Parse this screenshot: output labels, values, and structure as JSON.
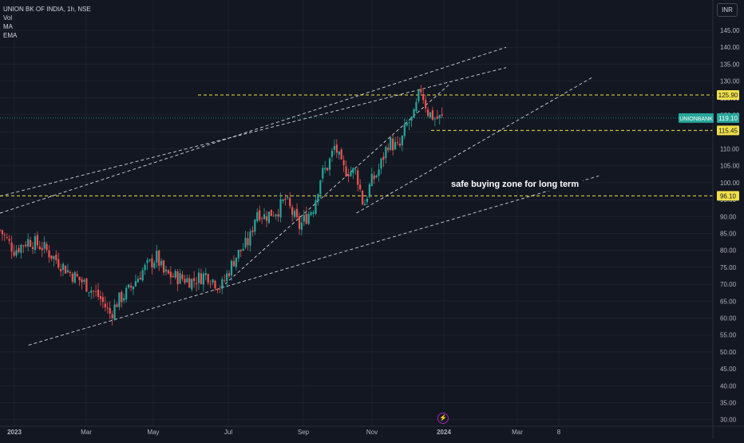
{
  "legend": {
    "symbol": "UNION BK OF INDIA, 1h, NSE",
    "indicators": [
      "Vol",
      "MA",
      "EMA"
    ]
  },
  "currency": "INR",
  "annotation": "safe buying zone for long term",
  "price_label": {
    "ticker": "UNIONBANK",
    "price": "119.10",
    "color": "#26a69a"
  },
  "levels": [
    {
      "label": "125.90",
      "value": 125.9,
      "color": "#f0e04a"
    },
    {
      "label": "115.45",
      "value": 115.45,
      "color": "#f0e04a"
    },
    {
      "label": "96.10",
      "value": 96.1,
      "color": "#f0e04a"
    }
  ],
  "colors": {
    "up": "#26a69a",
    "down": "#ef5350",
    "background": "#131722",
    "level": "#f0e04a"
  },
  "chart_data": {
    "type": "candlestick",
    "x_ticks": [
      "2023",
      "Mar",
      "May",
      "Jul",
      "Sep",
      "Nov",
      "2024",
      "Mar",
      "8"
    ],
    "y_ticks": [
      "145.00",
      "140.00",
      "135.00",
      "130.00",
      "125.00",
      "120.00",
      "115.00",
      "110.00",
      "105.00",
      "100.00",
      "95.00",
      "90.00",
      "85.00",
      "80.00",
      "75.00",
      "70.00",
      "65.00",
      "60.00",
      "55.00",
      "50.00",
      "45.00",
      "40.00",
      "35.00",
      "30.00"
    ],
    "ylim": [
      28,
      150
    ],
    "price_path": [
      [
        0,
        86
      ],
      [
        0.02,
        80
      ],
      [
        0.04,
        83
      ],
      [
        0.06,
        81
      ],
      [
        0.08,
        77
      ],
      [
        0.1,
        73
      ],
      [
        0.12,
        70
      ],
      [
        0.14,
        66
      ],
      [
        0.155,
        61
      ],
      [
        0.165,
        65
      ],
      [
        0.18,
        68
      ],
      [
        0.2,
        74
      ],
      [
        0.22,
        78
      ],
      [
        0.23,
        73
      ],
      [
        0.25,
        72
      ],
      [
        0.27,
        71
      ],
      [
        0.29,
        73
      ],
      [
        0.31,
        69
      ],
      [
        0.33,
        78
      ],
      [
        0.35,
        83
      ],
      [
        0.36,
        92
      ],
      [
        0.37,
        90
      ],
      [
        0.39,
        92
      ],
      [
        0.4,
        95
      ],
      [
        0.41,
        91
      ],
      [
        0.42,
        87
      ],
      [
        0.44,
        93
      ],
      [
        0.45,
        102
      ],
      [
        0.46,
        105
      ],
      [
        0.47,
        111
      ],
      [
        0.48,
        104
      ],
      [
        0.5,
        103
      ],
      [
        0.51,
        93
      ],
      [
        0.52,
        100
      ],
      [
        0.53,
        103
      ],
      [
        0.545,
        112
      ],
      [
        0.56,
        110
      ],
      [
        0.57,
        117
      ],
      [
        0.58,
        119
      ],
      [
        0.59,
        128
      ],
      [
        0.6,
        121
      ],
      [
        0.61,
        119
      ],
      [
        0.62,
        119
      ]
    ],
    "trendlines": [
      {
        "points": [
          [
            0,
            91
          ],
          [
            0.71,
            140
          ]
        ]
      },
      {
        "points": [
          [
            0,
            96
          ],
          [
            0.71,
            134
          ]
        ]
      },
      {
        "points": [
          [
            0.04,
            52
          ],
          [
            0.84,
            102
          ]
        ]
      },
      {
        "points": [
          [
            0.31,
            69
          ],
          [
            0.63,
            129
          ]
        ]
      },
      {
        "points": [
          [
            0.5,
            91
          ],
          [
            0.83,
            131
          ]
        ]
      }
    ]
  }
}
